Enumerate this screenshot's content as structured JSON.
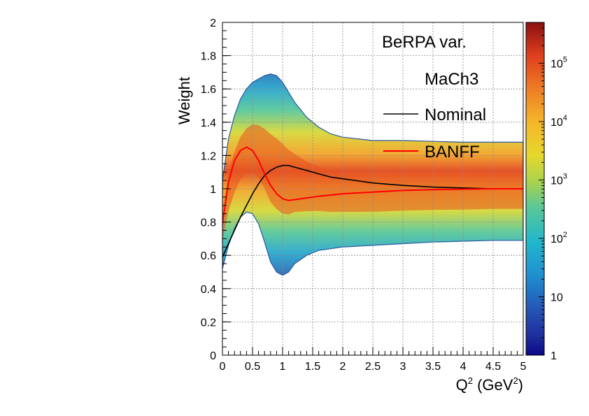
{
  "chart_data": {
    "type": "heatmap",
    "title": "",
    "xlabel": "Q",
    "xlabel_sup": "2",
    "xlabel_unit_open": " (GeV",
    "xlabel_unit_sup": "2",
    "xlabel_unit_close": ")",
    "ylabel": "Weight",
    "xlim": [
      0,
      5
    ],
    "ylim": [
      0,
      2
    ],
    "x_ticks": [
      "0",
      "0.5",
      "1",
      "1.5",
      "2",
      "2.5",
      "3",
      "3.5",
      "4",
      "4.5",
      "5"
    ],
    "y_ticks": [
      "0",
      "0.2",
      "0.4",
      "0.6",
      "0.8",
      "1",
      "1.2",
      "1.4",
      "1.6",
      "1.8",
      "2"
    ],
    "grid": true,
    "legend_position": "top-right",
    "legend": {
      "header": "BeRPA var.",
      "subheader": "MaCh3",
      "entries": [
        {
          "name": "Nominal",
          "color": "#000000"
        },
        {
          "name": "BANFF",
          "color": "#ff0000"
        }
      ]
    },
    "colorbar": {
      "scale": "log",
      "range": [
        1,
        500000
      ],
      "labels": [
        {
          "base": "1",
          "exp": "",
          "value": 1
        },
        {
          "base": "10",
          "exp": "",
          "value": 10
        },
        {
          "base": "10",
          "exp": "2",
          "value": 100
        },
        {
          "base": "10",
          "exp": "3",
          "value": 1000
        },
        {
          "base": "10",
          "exp": "4",
          "value": 10000
        },
        {
          "base": "10",
          "exp": "5",
          "value": 100000
        }
      ]
    },
    "series": [
      {
        "name": "Nominal",
        "color": "#000000",
        "x": [
          0,
          0.1,
          0.2,
          0.3,
          0.4,
          0.5,
          0.6,
          0.7,
          0.8,
          0.9,
          1.0,
          1.1,
          1.2,
          1.4,
          1.6,
          1.8,
          2.0,
          2.5,
          3.0,
          3.5,
          4.0,
          4.5,
          5.0
        ],
        "y": [
          0.59,
          0.67,
          0.75,
          0.83,
          0.9,
          0.97,
          1.03,
          1.08,
          1.11,
          1.13,
          1.14,
          1.14,
          1.13,
          1.11,
          1.09,
          1.07,
          1.06,
          1.035,
          1.02,
          1.01,
          1.005,
          1.0,
          1.0
        ]
      },
      {
        "name": "BANFF",
        "color": "#ff0000",
        "x": [
          0,
          0.1,
          0.2,
          0.3,
          0.4,
          0.5,
          0.6,
          0.7,
          0.8,
          0.9,
          1.0,
          1.1,
          1.2,
          1.4,
          1.6,
          1.8,
          2.0,
          2.5,
          3.0,
          3.5,
          4.0,
          4.5,
          5.0
        ],
        "y": [
          0.79,
          1.04,
          1.17,
          1.23,
          1.25,
          1.23,
          1.17,
          1.09,
          1.02,
          0.97,
          0.94,
          0.93,
          0.935,
          0.945,
          0.955,
          0.962,
          0.97,
          0.98,
          0.99,
          0.995,
          0.998,
          1.0,
          1.0
        ]
      }
    ],
    "envelope": {
      "x": [
        0,
        0.1,
        0.2,
        0.3,
        0.4,
        0.5,
        0.6,
        0.7,
        0.8,
        0.9,
        1.0,
        1.1,
        1.2,
        1.4,
        1.6,
        1.8,
        2.0,
        2.5,
        3.0,
        3.5,
        4.0,
        4.5,
        5.0
      ],
      "upper": [
        1.05,
        1.3,
        1.44,
        1.54,
        1.6,
        1.64,
        1.66,
        1.68,
        1.69,
        1.68,
        1.64,
        1.58,
        1.52,
        1.43,
        1.37,
        1.33,
        1.31,
        1.29,
        1.29,
        1.285,
        1.28,
        1.28,
        1.28
      ],
      "lower": [
        0.52,
        0.66,
        0.76,
        0.83,
        0.86,
        0.85,
        0.79,
        0.68,
        0.56,
        0.5,
        0.48,
        0.5,
        0.55,
        0.6,
        0.63,
        0.64,
        0.65,
        0.66,
        0.67,
        0.68,
        0.685,
        0.69,
        0.69
      ]
    }
  }
}
